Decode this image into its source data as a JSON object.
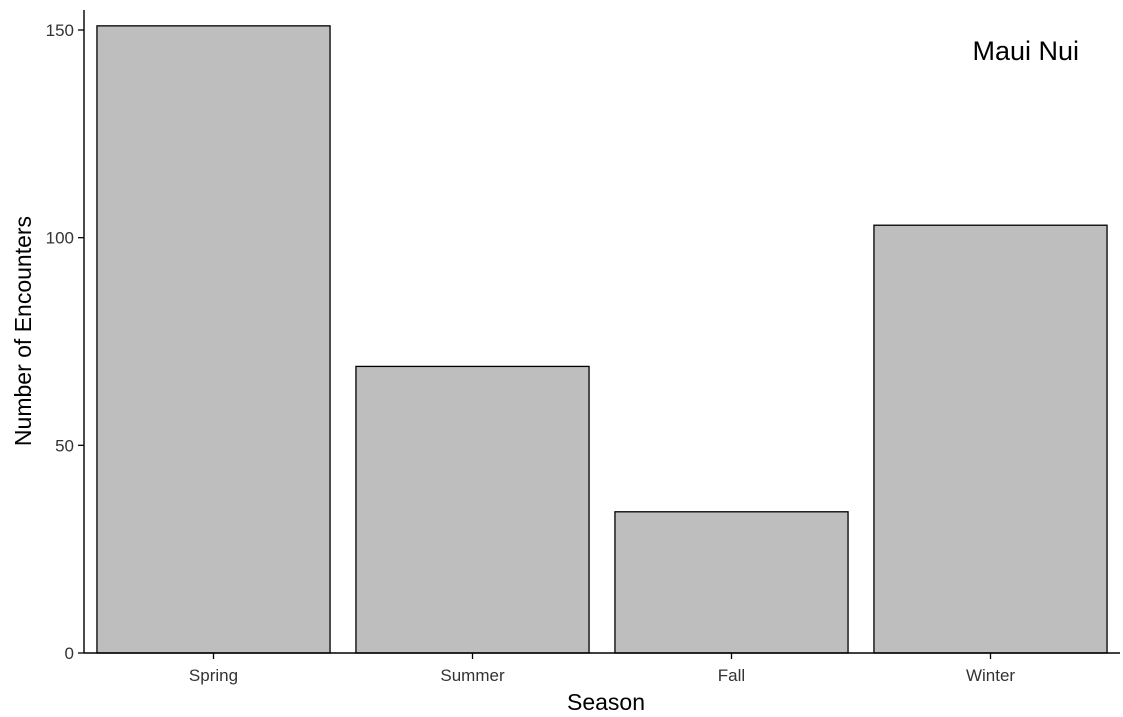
{
  "chart_data": {
    "type": "bar",
    "title": "",
    "annotation": "Maui Nui",
    "xlabel": "Season",
    "ylabel": "Number of Encounters",
    "categories": [
      "Spring",
      "Summer",
      "Fall",
      "Winter"
    ],
    "values": [
      151,
      69,
      34,
      103
    ],
    "ylim": [
      0,
      155
    ],
    "yticks": [
      0,
      50,
      100,
      150
    ],
    "grid": false,
    "legend": "none",
    "colors": {
      "bar_fill": "#bebebe",
      "bar_stroke": "#000000"
    }
  }
}
